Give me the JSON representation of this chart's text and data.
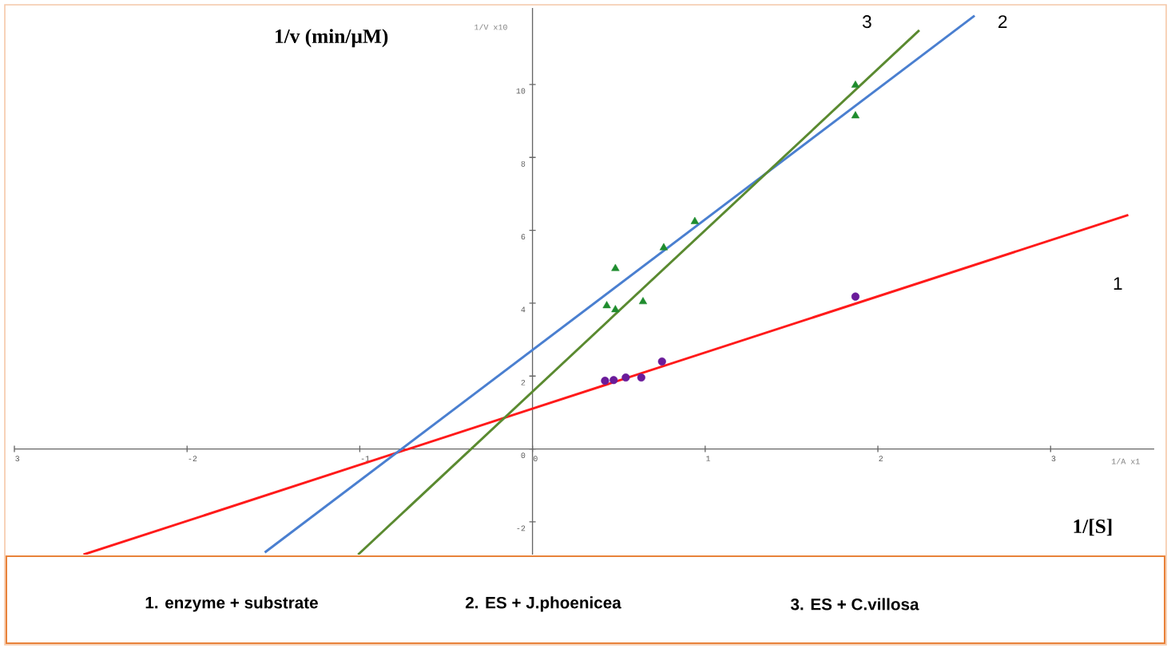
{
  "chart_data": {
    "type": "scatter",
    "xlabel": "1/[S]",
    "ylabel": "1/v (min/µM)",
    "xlim": [
      -3,
      3.6
    ],
    "ylim": [
      -2.9,
      12.1
    ],
    "xticks": [
      {
        "value": -3,
        "label": "3"
      },
      -2,
      -1,
      0,
      1,
      2,
      3
    ],
    "yticks": [
      -2,
      0,
      2,
      4,
      6,
      8,
      10
    ],
    "series": [
      {
        "marker": "circle",
        "color": "#6a1b9a",
        "x": [
          0.42,
          0.47,
          0.54,
          0.63,
          0.75,
          1.87
        ],
        "values": [
          1.87,
          1.89,
          1.96,
          1.96,
          2.4,
          4.18
        ]
      },
      {
        "marker": "triangle",
        "color": "#1e8c2e",
        "x": [
          0.43,
          0.48,
          0.76,
          1.87
        ],
        "values": [
          3.93,
          4.95,
          5.52,
          9.14
        ]
      },
      {
        "marker": "triangle",
        "color": "#1e8c2e",
        "x": [
          0.48,
          0.64,
          0.94,
          1.87
        ],
        "values": [
          3.82,
          4.04,
          6.24,
          9.98
        ]
      },
      {
        "type": "line",
        "marker": "none",
        "color": "#ff1a1a",
        "x": [
          -2.6,
          3.45
        ],
        "values": [
          -2.9,
          6.42
        ]
      },
      {
        "type": "line",
        "marker": "none",
        "color": "#4a7fd0",
        "x": [
          -1.55,
          2.56
        ],
        "values": [
          -2.84,
          11.89
        ]
      },
      {
        "type": "line",
        "marker": "none",
        "color": "#5a8a30",
        "x": [
          -1.01,
          2.24
        ],
        "values": [
          -2.9,
          11.49
        ]
      }
    ],
    "annotations": [
      "1/V x10",
      "1/A x1",
      "1.  enzyme + substrate",
      "2.  ES + J.phoenicea",
      "3. ES + C.villosa",
      "1",
      "2",
      "3"
    ]
  }
}
